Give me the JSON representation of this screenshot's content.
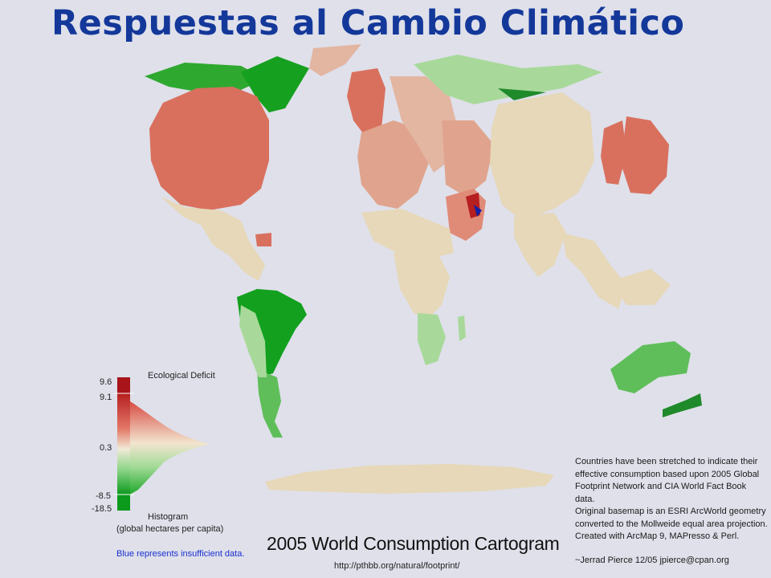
{
  "slide": {
    "title": "Respuestas al Cambio Climático"
  },
  "map": {
    "caption": "2005 World Consumption Cartogram",
    "url": "http://pthbb.org/natural/footprint/",
    "colors": {
      "background": "#dfe0ea",
      "deficit_strong": "#b51f1f",
      "deficit": "#d9705e",
      "deficit_light": "#e0a48e",
      "neutral": "#e6d8b8",
      "reserve_light": "#a8d99a",
      "reserve": "#3aa83a",
      "reserve_strong": "#0c9a1c",
      "insufficient": "#1520a0"
    }
  },
  "legend": {
    "top_label": "Ecological Deficit",
    "ticks": [
      "9.6",
      "9.1",
      "0.3",
      "-8.5",
      "-18.5"
    ],
    "histogram_label": "Histogram",
    "histogram_units": "(global hectares per capita)",
    "blue_note": "Blue represents insufficient data."
  },
  "notes": {
    "lines": [
      "Countries have been stretched to indicate their",
      "effective consumption based upon 2005 Global",
      "Footprint Network and CIA World Fact Book data.",
      "Original basemap is an ESRI ArcWorld geometry",
      "converted to the Mollweide equal area projection.",
      "Created with ArcMap 9, MAPresso & Perl."
    ],
    "author": "~Jerrad Pierce 12/05 jpierce@cpan.org"
  }
}
